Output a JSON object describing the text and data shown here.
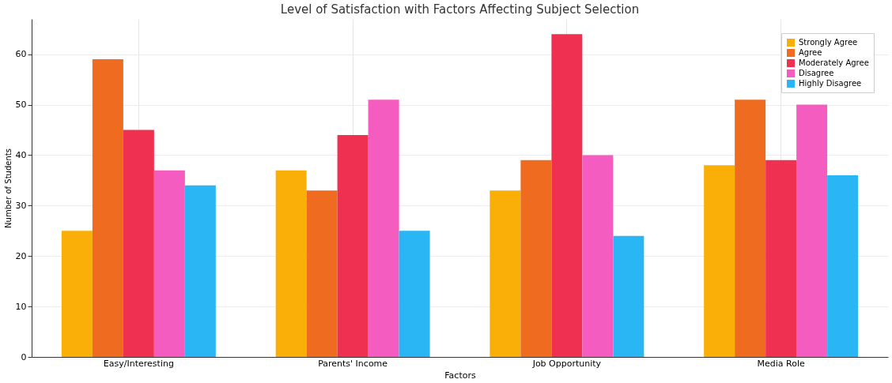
{
  "chart_data": {
    "type": "bar",
    "title": "Level of Satisfaction with Factors Affecting Subject Selection",
    "xlabel": "Factors",
    "ylabel": "Number of Students",
    "categories": [
      "Easy/Interesting",
      "Parents' Income",
      "Job Opportunity",
      "Media Role"
    ],
    "series": [
      {
        "name": "Strongly Agree",
        "color": "#f9ae08",
        "values": [
          25,
          37,
          33,
          38
        ]
      },
      {
        "name": "Agree",
        "color": "#ee6b1f",
        "values": [
          59,
          33,
          39,
          51
        ]
      },
      {
        "name": "Moderately Agree",
        "color": "#f03050",
        "values": [
          45,
          44,
          64,
          39
        ]
      },
      {
        "name": "Disagree",
        "color": "#f55cc0",
        "values": [
          37,
          51,
          40,
          50
        ]
      },
      {
        "name": "Highly Disagree",
        "color": "#2ab5f5",
        "values": [
          34,
          25,
          24,
          36
        ]
      }
    ],
    "ylim": [
      0,
      67
    ],
    "yticks": [
      0,
      10,
      20,
      30,
      40,
      50,
      60
    ],
    "grid": true,
    "legend": "top right"
  }
}
